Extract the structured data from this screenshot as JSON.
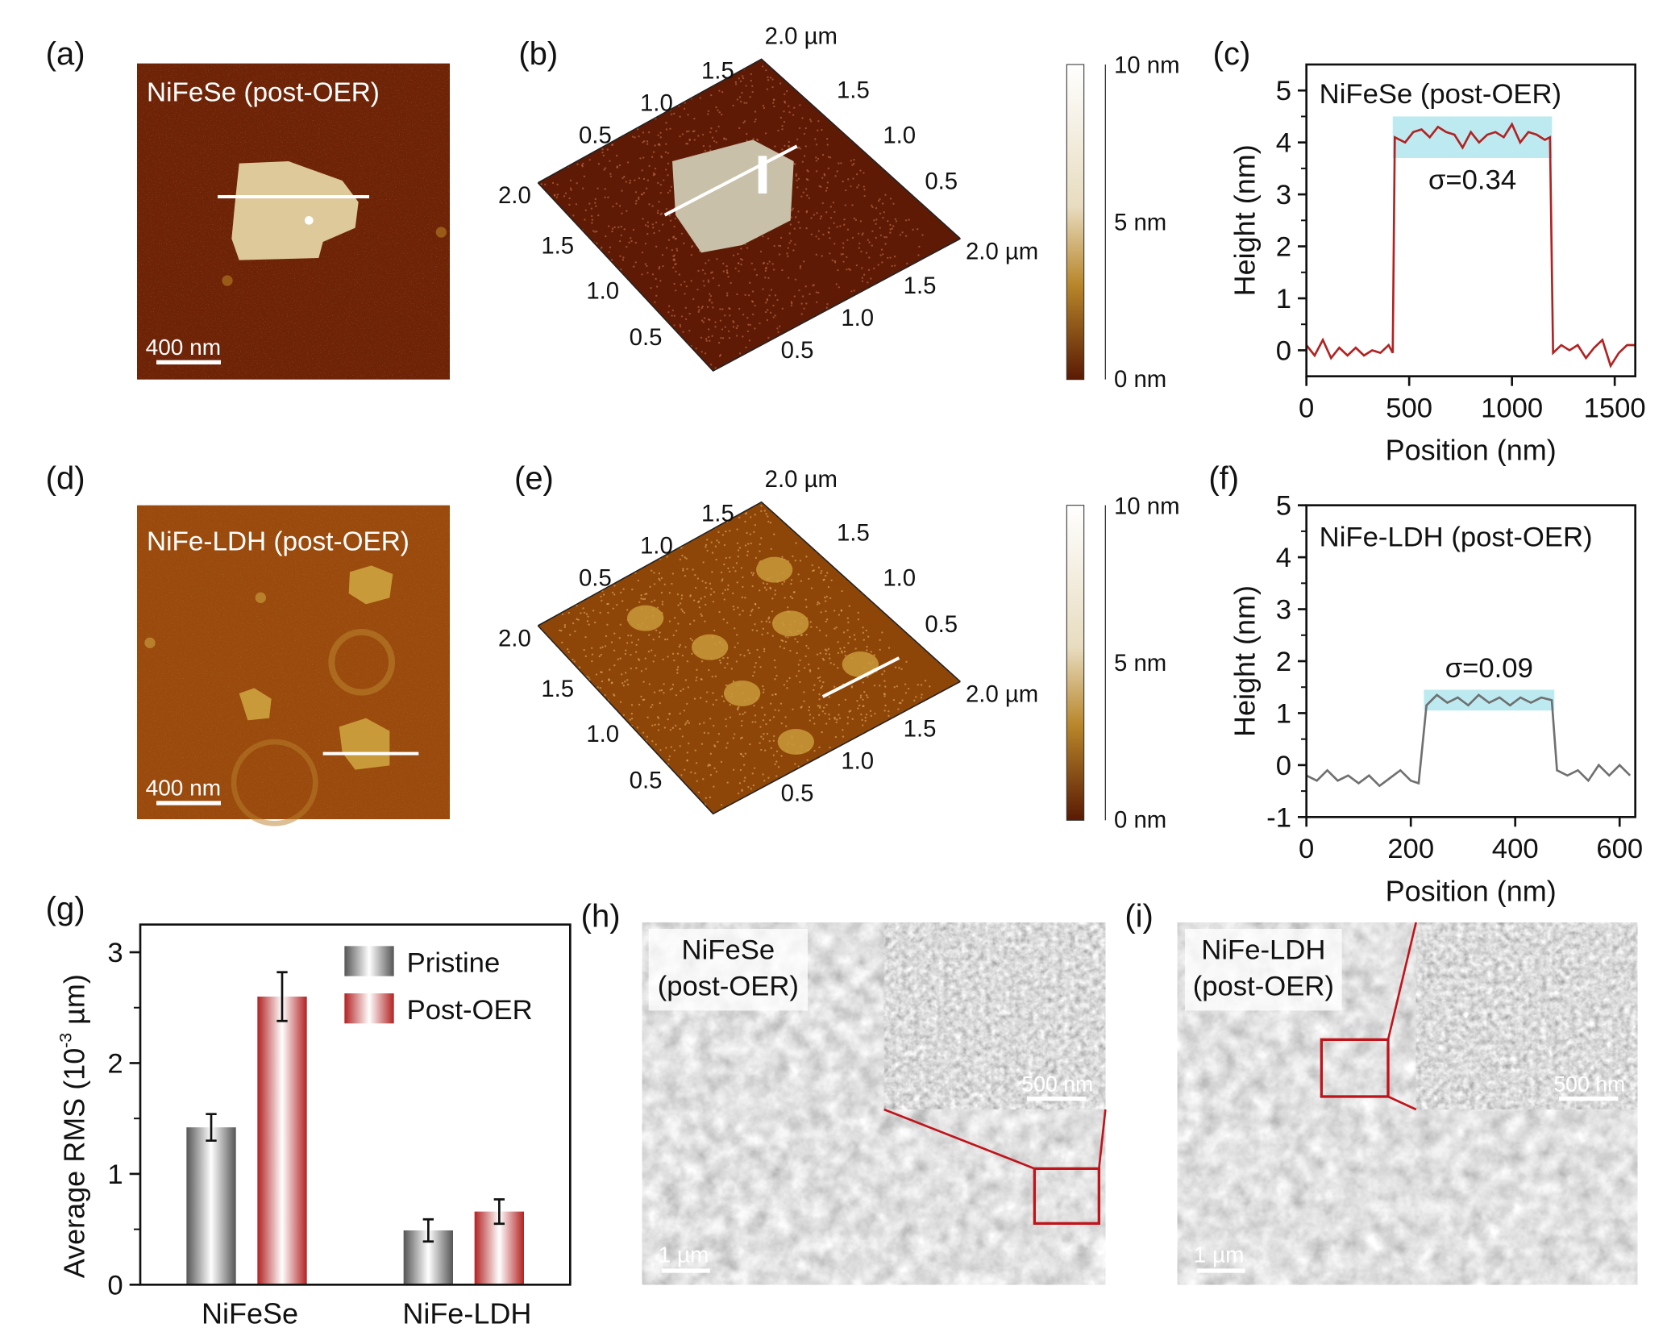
{
  "panel_labels": [
    "(a)",
    "(b)",
    "(c)",
    "(d)",
    "(e)",
    "(f)",
    "(g)",
    "(h)",
    "(i)"
  ],
  "a": {
    "title": "NiFeSe (post-OER)",
    "scalebar": "400 nm"
  },
  "b": {
    "ticks_top_left": [
      "0.5",
      "1.0",
      "1.5",
      "2.0 µm"
    ],
    "ticks_top_right": [
      "1.5",
      "1.0",
      "0.5",
      "2.0 µm"
    ],
    "ticks_bottom_right": [
      "1.5",
      "1.0",
      "0.5"
    ],
    "ticks_left": [
      "2.0",
      "1.5",
      "1.0",
      "0.5"
    ]
  },
  "colorbar_top": {
    "labels": [
      "10 nm",
      "5 nm",
      "0 nm"
    ]
  },
  "d": {
    "title": "NiFe-LDH (post-OER)",
    "scalebar": "400 nm"
  },
  "e": {
    "ticks_top_left": [
      "0.5",
      "1.0",
      "1.5",
      "2.0 µm"
    ],
    "ticks_top_right": [
      "1.5",
      "1.0",
      "0.5",
      "2.0 µm"
    ],
    "ticks_bottom_right": [
      "1.5",
      "1.0",
      "0.5"
    ],
    "ticks_left": [
      "2.0",
      "1.5",
      "1.0",
      "0.5"
    ]
  },
  "colorbar_bottom": {
    "labels": [
      "10 nm",
      "5 nm",
      "0 nm"
    ]
  },
  "h": {
    "label_line1": "NiFeSe",
    "label_line2": "(post-OER)",
    "scalebar": "1 µm",
    "inset_scalebar": "500 nm"
  },
  "i": {
    "label_line1": "NiFe-LDH",
    "label_line2": "(post-OER)",
    "scalebar": "1 µm",
    "inset_scalebar": "500 nm"
  },
  "colors": {
    "afm_dark": "#6e2306",
    "afm_ldh": "#9a4a0c",
    "profile_c": "#b22222",
    "profile_f": "#707070",
    "band": "#bdeaf0",
    "zoom_box": "#c0141c"
  },
  "chart_data": [
    {
      "id": "c",
      "type": "line",
      "annotation": "NiFeSe (post-OER)",
      "sigma_label": "σ=0.34",
      "xlabel": "Position (nm)",
      "ylabel": "Height (nm)",
      "xlim": [
        0,
        1600
      ],
      "ylim": [
        -0.5,
        5.5
      ],
      "xticks": [
        0,
        500,
        1000,
        1500
      ],
      "yticks": [
        0,
        1,
        2,
        3,
        4,
        5
      ],
      "band": {
        "x": [
          420,
          1195
        ],
        "y": [
          3.7,
          4.5
        ]
      },
      "x": [
        0,
        40,
        80,
        120,
        160,
        200,
        240,
        280,
        320,
        360,
        400,
        420,
        430,
        480,
        520,
        560,
        600,
        640,
        680,
        720,
        760,
        800,
        840,
        880,
        920,
        960,
        1000,
        1040,
        1080,
        1120,
        1160,
        1185,
        1200,
        1240,
        1280,
        1320,
        1360,
        1400,
        1440,
        1480,
        1520,
        1560,
        1600
      ],
      "y": [
        0.1,
        -0.1,
        0.2,
        -0.15,
        0.05,
        -0.1,
        0.05,
        -0.1,
        0.0,
        -0.05,
        0.1,
        -0.05,
        4.1,
        4.0,
        4.2,
        4.25,
        4.1,
        4.3,
        4.2,
        4.15,
        3.9,
        4.2,
        4.0,
        4.15,
        4.2,
        4.1,
        4.35,
        4.0,
        4.2,
        4.15,
        4.05,
        4.1,
        -0.05,
        0.1,
        0.0,
        0.1,
        -0.15,
        0.05,
        0.2,
        -0.3,
        -0.05,
        0.1,
        0.1
      ]
    },
    {
      "id": "f",
      "type": "line",
      "annotation": "NiFe-LDH (post-OER)",
      "sigma_label": "σ=0.09",
      "xlabel": "Position (nm)",
      "ylabel": "Height (nm)",
      "xlim": [
        0,
        630
      ],
      "ylim": [
        -1,
        5
      ],
      "xticks": [
        0,
        200,
        400,
        600
      ],
      "yticks": [
        -1,
        0,
        1,
        2,
        3,
        4,
        5
      ],
      "band": {
        "x": [
          225,
          475
        ],
        "y": [
          1.05,
          1.45
        ]
      },
      "x": [
        0,
        20,
        40,
        60,
        80,
        100,
        120,
        140,
        160,
        180,
        200,
        215,
        230,
        250,
        270,
        290,
        310,
        330,
        350,
        370,
        390,
        410,
        430,
        450,
        470,
        480,
        500,
        520,
        540,
        560,
        580,
        600,
        620
      ],
      "y": [
        -0.2,
        -0.3,
        -0.1,
        -0.3,
        -0.2,
        -0.35,
        -0.2,
        -0.4,
        -0.25,
        -0.1,
        -0.3,
        -0.35,
        1.15,
        1.35,
        1.2,
        1.3,
        1.15,
        1.35,
        1.2,
        1.3,
        1.15,
        1.3,
        1.2,
        1.3,
        1.25,
        -0.1,
        -0.2,
        -0.1,
        -0.3,
        0.0,
        -0.2,
        0.0,
        -0.2
      ]
    },
    {
      "id": "g",
      "type": "bar",
      "categories": [
        "NiFeSe",
        "NiFe-LDH"
      ],
      "ylabel": "Average RMS (10",
      "ylabel_sup": "-3",
      "ylabel_tail": " µm)",
      "ylim": [
        0,
        3.25
      ],
      "yticks": [
        0,
        1,
        2,
        3
      ],
      "legend": "top-right",
      "series": [
        {
          "name": "Pristine",
          "values": [
            1.42,
            0.49
          ],
          "errors": [
            0.12,
            0.1
          ],
          "color": "#555555"
        },
        {
          "name": "Post-OER",
          "values": [
            2.6,
            0.66
          ],
          "errors": [
            0.22,
            0.11
          ],
          "color": "#b22222"
        }
      ]
    }
  ]
}
